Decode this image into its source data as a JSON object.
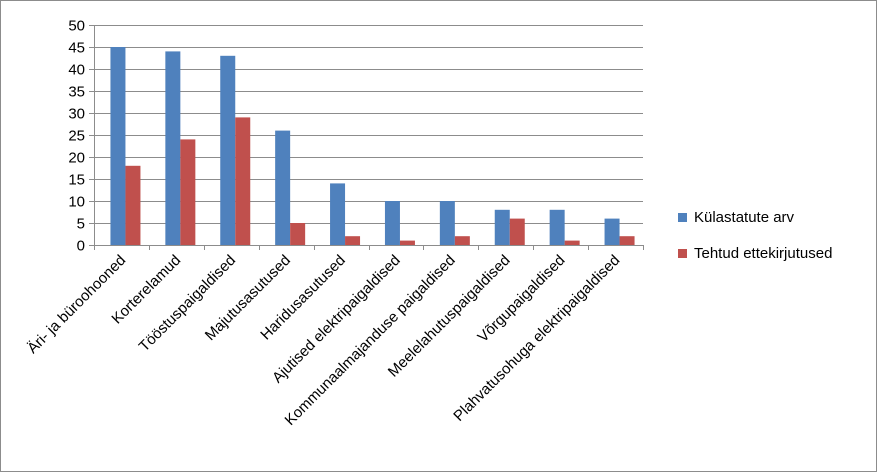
{
  "chart_data": {
    "type": "bar",
    "title": "",
    "xlabel": "",
    "ylabel": "",
    "ylim": [
      0,
      50
    ],
    "ytick_step": 5,
    "grid": true,
    "legend_position": "right",
    "categories": [
      "Äri- ja büroohooned",
      "Korterelamud",
      "Tööstuspaigaldised",
      "Majutusasutused",
      "Haridusasutused",
      "Ajutised elektripaigaldised",
      "Kommunaalmajanduse paigaldised",
      "Meelelahutuspaigaldised",
      "Võrgupaigaldised",
      "Plahvatusohuga elektripaigaldised"
    ],
    "series": [
      {
        "name": "Külastatute arv",
        "color": "#4F81BD",
        "values": [
          45,
          44,
          43,
          26,
          14,
          10,
          10,
          8,
          8,
          6
        ]
      },
      {
        "name": "Tehtud ettekirjutused",
        "color": "#C0504D",
        "values": [
          18,
          24,
          29,
          5,
          2,
          1,
          2,
          6,
          1,
          2
        ]
      }
    ]
  }
}
